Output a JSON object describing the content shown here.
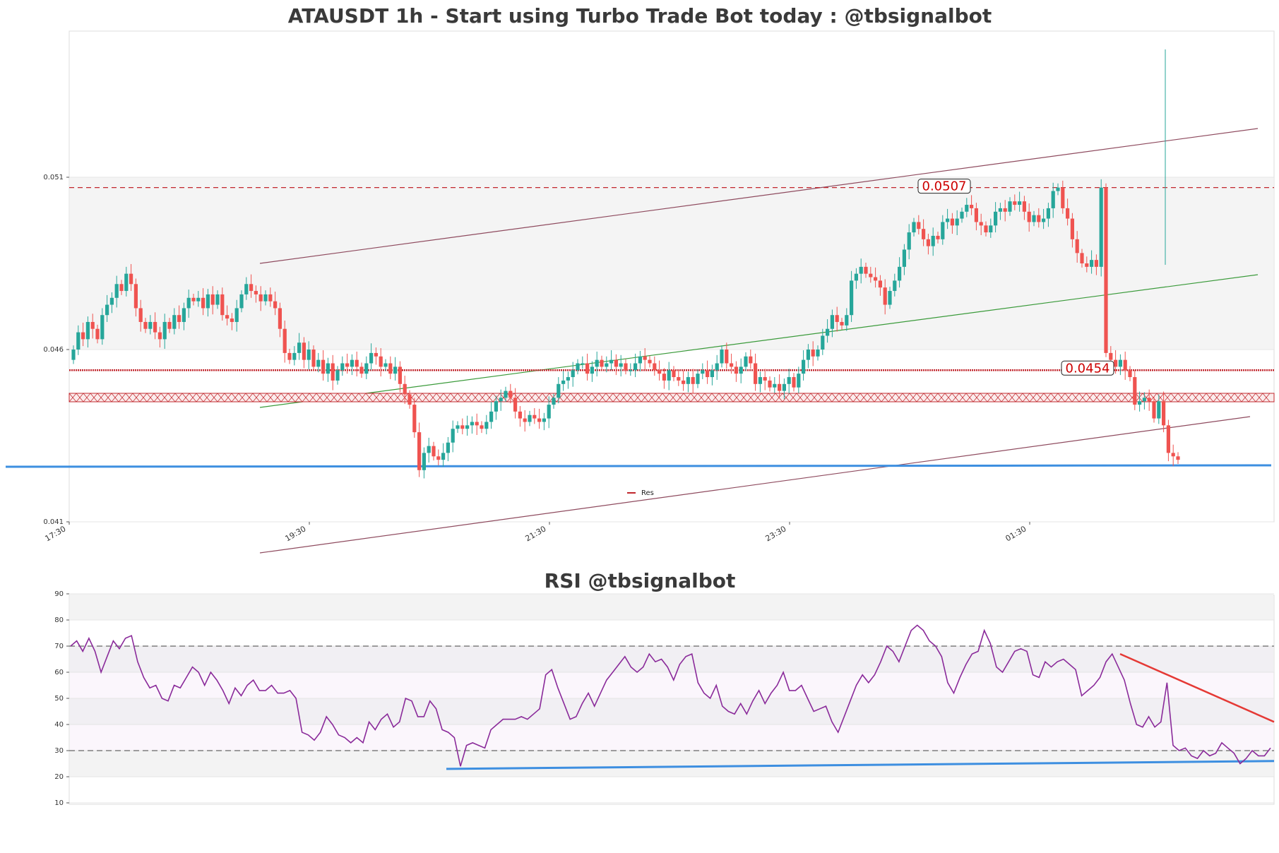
{
  "chart_data": [
    {
      "type": "candlestick",
      "title": "ATAUSDT 1h - Start using Turbo Trade Bot today : @tbsignalbot",
      "y_ticks": [
        "0.041",
        "0.046",
        "0.051"
      ],
      "ylim": [
        0.041,
        0.0553
      ],
      "x_ticks": [
        "17:30",
        "19:30",
        "21:30",
        "23:30",
        "01:30"
      ],
      "resistance_band": [
        0.046,
        0.051
      ],
      "levels": [
        {
          "label": "0.0507",
          "value": 0.0507,
          "style": "dashed"
        },
        {
          "label": "0.0454",
          "value": 0.0454,
          "style": "dotted"
        }
      ],
      "support_line_value": 0.0437,
      "legend": [
        {
          "label": "Res",
          "color": "#c1272d"
        }
      ],
      "colors": {
        "up": "#26a69a",
        "down": "#ef5350",
        "level": "#c1272d",
        "support": "#3d8fe0",
        "channel": "#8e4a5e",
        "trend": "#3a9a3a"
      },
      "closes": [
        0.046,
        0.0465,
        0.0463,
        0.0468,
        0.0466,
        0.0463,
        0.047,
        0.0473,
        0.0475,
        0.0479,
        0.0477,
        0.0482,
        0.0479,
        0.0472,
        0.0468,
        0.0466,
        0.0468,
        0.0465,
        0.0463,
        0.0468,
        0.0466,
        0.047,
        0.0468,
        0.0472,
        0.0475,
        0.0474,
        0.0475,
        0.0472,
        0.0476,
        0.0473,
        0.0476,
        0.047,
        0.0469,
        0.0468,
        0.0472,
        0.0476,
        0.0479,
        0.0477,
        0.0476,
        0.0474,
        0.0476,
        0.0474,
        0.0472,
        0.0466,
        0.0459,
        0.0457,
        0.0459,
        0.0462,
        0.0457,
        0.046,
        0.0455,
        0.0457,
        0.0453,
        0.0456,
        0.0451,
        0.0454,
        0.0456,
        0.0455,
        0.0457,
        0.0455,
        0.0453,
        0.0456,
        0.0459,
        0.0458,
        0.0455,
        0.0456,
        0.0453,
        0.0455,
        0.045,
        0.0447,
        0.0444,
        0.0436,
        0.0425,
        0.043,
        0.0432,
        0.0429,
        0.0428,
        0.043,
        0.0433,
        0.0437,
        0.0438,
        0.0437,
        0.0438,
        0.0439,
        0.0438,
        0.0437,
        0.0439,
        0.0442,
        0.0445,
        0.0446,
        0.0448,
        0.0446,
        0.0442,
        0.044,
        0.0439,
        0.0441,
        0.044,
        0.0439,
        0.044,
        0.0444,
        0.0446,
        0.045,
        0.0451,
        0.0452,
        0.0454,
        0.0456,
        0.0456,
        0.0453,
        0.0455,
        0.0457,
        0.0455,
        0.0456,
        0.0457,
        0.0455,
        0.0456,
        0.0454,
        0.0454,
        0.0456,
        0.0458,
        0.0457,
        0.0456,
        0.0454,
        0.0453,
        0.0451,
        0.0454,
        0.0452,
        0.0451,
        0.045,
        0.0452,
        0.045,
        0.0453,
        0.0454,
        0.0452,
        0.0454,
        0.0456,
        0.046,
        0.0456,
        0.0455,
        0.0453,
        0.0455,
        0.0458,
        0.0456,
        0.045,
        0.0452,
        0.0451,
        0.0449,
        0.045,
        0.0448,
        0.045,
        0.0452,
        0.0449,
        0.0453,
        0.0457,
        0.046,
        0.0458,
        0.046,
        0.0464,
        0.0466,
        0.047,
        0.0468,
        0.0467,
        0.047,
        0.048,
        0.0482,
        0.0484,
        0.0482,
        0.0481,
        0.048,
        0.0478,
        0.0473,
        0.0477,
        0.048,
        0.0484,
        0.0489,
        0.0494,
        0.0497,
        0.0495,
        0.0492,
        0.049,
        0.0493,
        0.0492,
        0.0497,
        0.0498,
        0.0496,
        0.0498,
        0.05,
        0.0502,
        0.0501,
        0.0497,
        0.0496,
        0.0494,
        0.0496,
        0.05,
        0.0501,
        0.05,
        0.0503,
        0.0502,
        0.0503,
        0.05,
        0.0497,
        0.0499,
        0.0497,
        0.0498,
        0.0501,
        0.0506,
        0.0507,
        0.0501,
        0.0498,
        0.0492,
        0.0488,
        0.0485,
        0.0484,
        0.0486,
        0.0484,
        0.0507,
        0.0459,
        0.0457,
        0.0455,
        0.0457,
        0.0454,
        0.0452,
        0.0444,
        0.0445,
        0.0446,
        0.0445,
        0.044,
        0.0445,
        0.0438,
        0.043,
        0.0429,
        0.0428
      ]
    },
    {
      "type": "line",
      "title": "RSI @tbsignalbot",
      "y_ticks": [
        "10",
        "20",
        "30",
        "40",
        "50",
        "60",
        "70",
        "80",
        "90"
      ],
      "ylim": [
        10,
        90
      ],
      "overbought": 70,
      "oversold": 30,
      "colors": {
        "rsi": "#8a2a9a",
        "support": "#3d8fe0",
        "resistance": "#e53935",
        "band": "#f2f2f2"
      },
      "support_trend": [
        23,
        26
      ],
      "resistance_trend": [
        67,
        41
      ],
      "values": [
        70,
        72,
        68,
        73,
        68,
        60,
        66,
        72,
        69,
        73,
        74,
        64,
        58,
        54,
        55,
        50,
        49,
        55,
        54,
        58,
        62,
        60,
        55,
        60,
        57,
        53,
        48,
        54,
        51,
        55,
        57,
        53,
        53,
        55,
        52,
        52,
        53,
        50,
        37,
        36,
        34,
        37,
        43,
        40,
        36,
        35,
        33,
        35,
        33,
        41,
        38,
        42,
        44,
        39,
        41,
        50,
        49,
        43,
        43,
        49,
        46,
        38,
        37,
        35,
        24,
        32,
        33,
        32,
        31,
        38,
        40,
        42,
        42,
        42,
        43,
        42,
        44,
        46,
        59,
        61,
        54,
        48,
        42,
        43,
        48,
        52,
        47,
        52,
        57,
        60,
        63,
        66,
        62,
        60,
        62,
        67,
        64,
        65,
        62,
        57,
        63,
        66,
        67,
        56,
        52,
        50,
        55,
        47,
        45,
        44,
        48,
        44,
        49,
        53,
        48,
        52,
        55,
        60,
        53,
        53,
        55,
        50,
        45,
        46,
        47,
        41,
        37,
        43,
        49,
        55,
        59,
        56,
        59,
        64,
        70,
        68,
        64,
        70,
        76,
        78,
        76,
        72,
        70,
        66,
        56,
        52,
        58,
        63,
        67,
        68,
        76,
        71,
        62,
        60,
        64,
        68,
        69,
        68,
        59,
        58,
        64,
        62,
        64,
        65,
        63,
        61,
        51,
        53,
        55,
        58,
        64,
        67,
        62,
        57,
        48,
        40,
        39,
        43,
        39,
        41,
        56,
        32,
        30,
        31,
        28,
        27,
        30,
        28,
        29,
        33,
        31,
        29,
        25,
        27,
        30,
        28,
        28,
        31
      ]
    }
  ]
}
